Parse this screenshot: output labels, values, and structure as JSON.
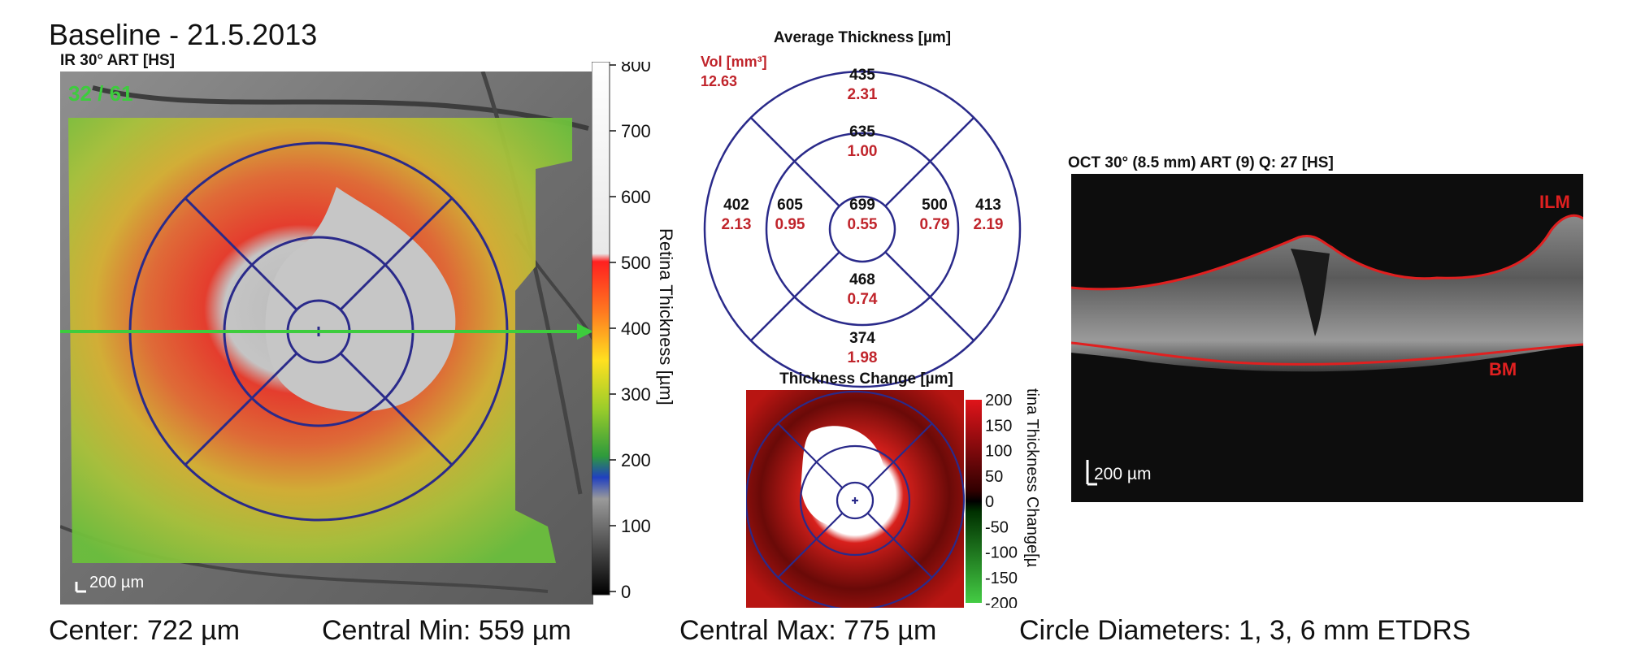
{
  "header": {
    "title": "Baseline - 21.5.2013",
    "ir_label": "IR 30° ART [HS]",
    "frame_counter": "32 / 61",
    "scale_bar_label": "200 µm"
  },
  "thickness_scale": {
    "title": "Retina Thickness [µm]",
    "ticks": [
      "800",
      "700",
      "600",
      "500",
      "400",
      "300",
      "200",
      "100",
      "0"
    ]
  },
  "etdrs_map": {
    "title": "Average Thickness [µm]",
    "vol_label": "Vol [mm³]",
    "total_volume": "12.63",
    "sectors": {
      "superior_outer": {
        "thickness": "435",
        "volume": "2.31"
      },
      "superior_inner": {
        "thickness": "635",
        "volume": "1.00"
      },
      "temporal_outer": {
        "thickness": "402",
        "volume": "2.13"
      },
      "temporal_inner": {
        "thickness": "605",
        "volume": "0.95"
      },
      "center": {
        "thickness": "699",
        "volume": "0.55"
      },
      "nasal_inner": {
        "thickness": "500",
        "volume": "0.79"
      },
      "nasal_outer": {
        "thickness": "413",
        "volume": "2.19"
      },
      "inferior_inner": {
        "thickness": "468",
        "volume": "0.74"
      },
      "inferior_outer": {
        "thickness": "374",
        "volume": "1.98"
      }
    }
  },
  "change_map": {
    "title": "Thickness Change [µm]",
    "axis_title": "tina Thickness Change[µ",
    "ticks": [
      "200",
      "150",
      "100",
      "50",
      "0",
      "-50",
      "-100",
      "-150",
      "-200"
    ]
  },
  "oct_scan": {
    "label": "OCT 30° (8.5 mm) ART (9) Q: 27 [HS]",
    "ilm_label": "ILM",
    "bm_label": "BM",
    "scale_bar_label": "200 µm"
  },
  "footer": {
    "center": "Center: 722 µm",
    "central_min": "Central Min: 559 µm",
    "central_max": "Central Max: 775 µm",
    "circle_diameters": "Circle Diameters:  1, 3, 6 mm ETDRS"
  },
  "colors": {
    "etdrs_lines": "#2a2a8a",
    "volume_text": "#c0242b",
    "scan_arrow": "#3dcc3d",
    "segmentation": "#e02020"
  }
}
